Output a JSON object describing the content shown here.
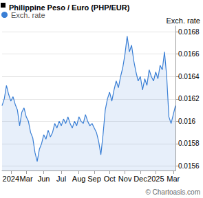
{
  "chart_data": {
    "type": "line",
    "title": "Philippine Peso / Euro (PHP/EUR)",
    "y_label": "Exch. rate",
    "annotations": [
      "© Chartoasis.com"
    ],
    "categories": [
      null,
      null,
      null,
      null,
      "2024",
      null,
      null,
      null,
      null,
      null,
      null,
      "Mar",
      null,
      null,
      null,
      null,
      null,
      null,
      null,
      "Jun",
      null,
      null,
      null,
      null,
      null,
      null,
      null,
      "Jul",
      null,
      null,
      null,
      null,
      null,
      null,
      null,
      "Aug",
      null,
      null,
      null,
      null,
      null,
      null,
      "Sep",
      null,
      null,
      null,
      null,
      null,
      null,
      "Oct",
      null,
      null,
      null,
      null,
      null,
      null,
      "Nov",
      null,
      null,
      null,
      null,
      null,
      null,
      "Dec",
      null,
      null,
      null,
      null,
      null,
      null,
      "2025",
      null,
      null,
      null,
      null,
      null,
      null,
      null,
      "Mar",
      null
    ],
    "series": [
      {
        "name": "Exch. rate",
        "color": "#3a7fd5",
        "values": [
          0.01614,
          0.0162,
          0.01632,
          0.01624,
          0.01618,
          0.01622,
          0.01615,
          0.0161,
          0.01596,
          0.01608,
          0.01612,
          0.01604,
          0.016,
          0.0159,
          0.01585,
          0.01572,
          0.01564,
          0.01575,
          0.0158,
          0.01588,
          0.01584,
          0.01592,
          0.01586,
          0.0159,
          0.01598,
          0.01594,
          0.016,
          0.01596,
          0.01602,
          0.01598,
          0.01604,
          0.01598,
          0.01594,
          0.016,
          0.01596,
          0.01604,
          0.016,
          0.01598,
          0.01606,
          0.016,
          0.01596,
          0.01598,
          0.01594,
          0.0159,
          0.01582,
          0.0157,
          0.01588,
          0.0161,
          0.0162,
          0.01626,
          0.01618,
          0.01628,
          0.01636,
          0.0163,
          0.0164,
          0.01648,
          0.0166,
          0.01676,
          0.01662,
          0.01668,
          0.01654,
          0.01644,
          0.01636,
          0.0164,
          0.01628,
          0.01638,
          0.01632,
          0.01646,
          0.0164,
          0.01636,
          0.01644,
          0.01638,
          0.0165,
          0.01646,
          0.01662,
          0.0164,
          0.01604,
          0.01598,
          0.01606,
          0.01614
        ]
      }
    ],
    "ylim": [
      0.01556,
      0.01685
    ],
    "yticks": [
      0.0156,
      0.0158,
      0.016,
      0.0162,
      0.0164,
      0.0166,
      0.0168
    ],
    "grid": true,
    "legend": "top-left"
  }
}
